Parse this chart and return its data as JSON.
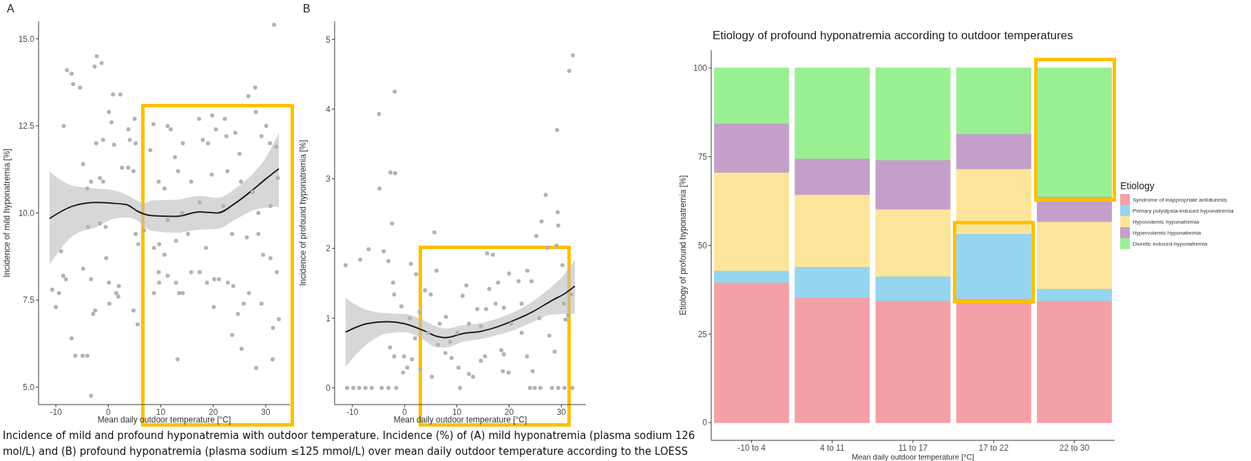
{
  "chart_data": [
    {
      "type": "scatter",
      "title": "A",
      "xlabel": "Mean daily outdoor temperature [°C]",
      "ylabel": "Incidence of mild hyponatremia [%]",
      "xlim": [
        -13.3,
        34.6
      ],
      "xticks": [
        -10,
        0,
        10,
        20,
        30
      ],
      "ylim": [
        4.5,
        15.5
      ],
      "yticks": [
        {
          "value": 5,
          "label": "5.0"
        },
        {
          "value": 7.5,
          "label": "7.5"
        },
        {
          "value": 10,
          "label": "10.0"
        },
        {
          "value": 12.5,
          "label": "12.5"
        },
        {
          "value": 15,
          "label": "15.0"
        }
      ],
      "annotations": [
        "Incidence of mild and profound hyponatremia with outdoor temperature. Incidence (%) of (A) mild hyponatremia (plasma sodium 126",
        "mol/L) and (B) profound hyponatremia (plasma sodium ≤125 mmol/L) over mean daily outdoor temperature according to the LOESS"
      ],
      "series": [
        {
          "type": "scatter",
          "marker": "circle",
          "color": "#b3b3b3",
          "x": [
            -7.9,
            -7.0,
            -6.7,
            -5.4,
            -2.6,
            -2.2,
            -1.3,
            0.9,
            2.3,
            0.1,
            -8.5,
            0.6,
            -2.3,
            -1.0,
            1.1,
            -4.8,
            3.8,
            4.1,
            5.0,
            5.2,
            2.6,
            3.8,
            4.8,
            -3.3,
            -1.6,
            -1.0,
            -4.0,
            -10.7,
            -10.0,
            -9.4,
            -9.0,
            -8.6,
            -8.1,
            -3.9,
            -4.8,
            -3.3,
            -1.6,
            -0.5,
            -0.4,
            0.1,
            1.5,
            2.0,
            1.9,
            0.2,
            -2.5,
            -2.9,
            -7.0,
            -6.3,
            -4.9,
            -4.0,
            -3.3,
            5.6,
            4.8,
            5.7,
            5.2,
            6.8,
            8.6,
            11.3,
            11.9,
            8.0,
            12.7,
            13.3,
            14.2,
            17.3,
            18.0,
            19.0,
            19.8,
            20.5,
            22.2,
            22.5,
            24.2,
            25.0,
            26.7,
            28.1,
            29.2,
            30.1,
            30.8,
            31.6,
            28.0,
            22.7,
            19.7,
            15.8,
            9.6,
            10.7,
            8.7,
            9.7,
            10.7,
            9.6,
            11.3,
            12.9,
            9.7,
            8.7,
            13.5,
            14.2,
            15.8,
            17.4,
            18.8,
            20.2,
            20.1,
            21.1,
            22.8,
            23.8,
            23.6,
            24.7,
            25.4,
            25.8,
            26.8,
            28.2,
            29.2,
            29.5,
            30.9,
            31.3,
            31.4,
            32.1,
            32.5,
            13.2,
            28.6,
            26.4,
            23.6,
            18.6,
            15.2,
            12.9,
            28.6,
            30.9,
            27.5,
            25.3,
            21.9,
            17.4,
            14.1,
            11.3,
            32.0,
            32.3
          ],
          "values": [
            14.1,
            14.0,
            13.7,
            13.6,
            14.2,
            14.5,
            14.3,
            13.4,
            13.4,
            12.9,
            12.5,
            12.6,
            12.0,
            12.1,
            11.96,
            11.4,
            12.4,
            12.1,
            12.7,
            12.0,
            11.3,
            11.3,
            11.2,
            10.9,
            11.0,
            10.9,
            10.7,
            7.8,
            7.3,
            7.7,
            8.9,
            8.2,
            8.1,
            9.6,
            8.4,
            8.1,
            9.7,
            9.6,
            8.7,
            8.0,
            7.7,
            7.9,
            7.6,
            7.4,
            7.2,
            7.1,
            6.4,
            5.9,
            5.9,
            5.9,
            4.75,
            6.8,
            7.2,
            9.1,
            9.4,
            9.5,
            12.55,
            12.5,
            12.4,
            11.8,
            11.6,
            11.2,
            12.0,
            12.7,
            12.1,
            12.0,
            12.8,
            12.4,
            12.7,
            12.2,
            12.3,
            11.7,
            13.35,
            12.9,
            12.2,
            12.5,
            12.0,
            15.4,
            13.6,
            11.2,
            11.1,
            10.9,
            10.9,
            10.7,
            9.0,
            9.1,
            8.8,
            8.3,
            8.2,
            8.0,
            8.0,
            7.7,
            7.7,
            7.7,
            8.3,
            8.3,
            8.0,
            8.1,
            7.3,
            8.1,
            8.0,
            7.9,
            6.5,
            7.1,
            6.1,
            7.4,
            7.7,
            5.55,
            7.4,
            8.8,
            8.7,
            5.8,
            6.7,
            8.3,
            6.95,
            5.8,
            9.4,
            9.3,
            9.4,
            9.0,
            9.4,
            9.2,
            10.0,
            10.2,
            10.6,
            10.9,
            10.2,
            10.3,
            10.0,
            9.8,
            11.9,
            11.0
          ]
        },
        {
          "type": "line",
          "color": "#1a1a1a",
          "x": [
            -11.2,
            -6.7,
            -2.2,
            0.6,
            3.4,
            5.7,
            6.8,
            8.5,
            12.9,
            17.4,
            20.8,
            24.2,
            27.5,
            29.8,
            32.5
          ],
          "values": [
            9.84,
            10.2,
            10.3,
            10.28,
            10.24,
            10.04,
            9.97,
            9.92,
            9.9,
            10.03,
            10.0,
            10.28,
            10.66,
            10.95,
            11.27
          ],
          "upper": [
            11.19,
            10.78,
            10.7,
            10.66,
            10.53,
            10.34,
            10.28,
            10.36,
            10.38,
            10.49,
            10.43,
            10.7,
            11.12,
            11.54,
            12.3
          ],
          "lower": [
            8.51,
            9.35,
            9.6,
            9.81,
            9.87,
            9.77,
            9.6,
            9.48,
            9.43,
            9.52,
            9.54,
            9.81,
            10.07,
            10.15,
            10.18
          ]
        }
      ]
    },
    {
      "type": "scatter",
      "title": "B",
      "xlabel": "Mean daily outdoor temperature [°C]",
      "ylabel": "Incidence of profound hyponatremia [%]",
      "xlim": [
        -13.4,
        34.7
      ],
      "xticks": [
        -10,
        0,
        10,
        20,
        30
      ],
      "ylim": [
        -0.24,
        5.26
      ],
      "yticks": [
        0,
        1,
        2,
        3,
        4,
        5
      ],
      "series": [
        {
          "type": "scatter",
          "marker": "circle",
          "color": "#b3b3b3",
          "x": [
            -11,
            -9.8,
            -8.7,
            -7.5,
            -6.3,
            -4.4,
            -3.1,
            -1.6,
            10.6,
            24.0,
            24.9,
            26.0,
            28.2,
            29.4,
            30.6,
            32.1,
            -4.9,
            -1.9,
            -2.7,
            -1.8,
            -4.8,
            -2.4,
            5.7,
            -11.3,
            -6.9,
            -8.5,
            -4.0,
            -3.1,
            -2.2,
            1.2,
            2.2,
            3.9,
            5.0,
            6.1,
            -2.0,
            -0.6,
            -0.3,
            0.5,
            -0.1,
            1.4,
            3.0,
            5.2,
            -2.8,
            -2.0,
            2.0,
            4.5,
            1.0,
            2.9,
            6.4,
            7.9,
            9.0,
            10.3,
            11.1,
            11.8,
            12.3,
            13.1,
            13.9,
            14.6,
            15.4,
            15.8,
            16.9,
            16.2,
            17.9,
            18.5,
            19.0,
            18.8,
            19.9,
            20.0,
            21.8,
            23.5,
            24.3,
            25.2,
            26.2,
            27.0,
            27.3,
            29.2,
            29.3,
            29.4,
            31.5,
            32.2,
            29.1,
            30.2,
            28.7,
            27.7,
            24.5,
            23.4,
            22.4,
            20.4,
            19.0,
            17.4,
            14.6,
            12.3,
            10.1,
            8.7,
            15.6,
            22.4,
            25.8,
            30.8,
            31.3,
            31.9,
            30.5,
            7.8,
            6.7
          ],
          "values": [
            0,
            0,
            0,
            0,
            0,
            0,
            0,
            0,
            0,
            0,
            0,
            0,
            0,
            0,
            0,
            0,
            3.93,
            4.25,
            3.09,
            3.08,
            2.86,
            2.36,
            2.23,
            1.76,
            1.99,
            1.84,
            1.96,
            1.82,
            1.51,
            1.78,
            1.63,
            1.4,
            1.34,
            1.68,
            1.34,
            1.17,
            0.22,
            0.29,
            0.45,
            0.41,
            0.27,
            0.16,
            0.58,
            0.45,
            0.71,
            0.79,
            1.0,
            1.09,
            0.62,
            1.02,
            0.43,
            0.29,
            1.32,
            1.47,
            0.2,
            0.16,
            1.13,
            0.39,
            0.45,
            1.93,
            1.91,
            1.42,
            1.51,
            0.54,
            0.48,
            0.24,
            0.22,
            1.64,
            1.53,
            1.68,
            1.53,
            2.18,
            2.39,
            2.77,
            2.01,
            3.7,
            2.52,
            2.33,
            4.55,
            4.77,
            2.04,
            1.76,
            0.52,
            0.75,
            0.24,
            0.45,
            0.79,
            0.92,
            1.15,
            1.21,
            0.88,
            0.92,
            0.79,
            0.66,
            1.13,
            1.21,
            1.0,
            0.98,
            1.04,
            1.34,
            1.21,
            0.5,
            0.92
          ]
        },
        {
          "type": "line",
          "color": "#1a1a1a",
          "x": [
            -11.3,
            -7.3,
            -3.4,
            0,
            3.4,
            6.1,
            7.8,
            11.2,
            14.5,
            17.9,
            21.3,
            24.7,
            28.1,
            30.8,
            32.6
          ],
          "values": [
            0.8,
            0.92,
            0.95,
            0.92,
            0.83,
            0.74,
            0.72,
            0.78,
            0.81,
            0.88,
            0.98,
            1.1,
            1.25,
            1.36,
            1.46
          ],
          "upper": [
            1.29,
            1.12,
            1.07,
            1.06,
            0.98,
            0.88,
            0.85,
            0.9,
            0.93,
            1.0,
            1.1,
            1.25,
            1.45,
            1.65,
            1.84
          ],
          "lower": [
            0.3,
            0.62,
            0.78,
            0.8,
            0.7,
            0.58,
            0.58,
            0.66,
            0.7,
            0.76,
            0.84,
            0.95,
            1.05,
            1.06,
            1.06
          ]
        }
      ]
    },
    {
      "type": "bar",
      "stacked": true,
      "title": "Etiology of profound hyponatremia according to outdoor temperatures",
      "xlabel": "Mean daily outdoor temperature [°C]",
      "ylabel": "Etiology of profound hyponatremia [%]",
      "legend_title": "Etiology",
      "legend": "right",
      "categories": [
        "-10 to 4",
        "4 to 11",
        "11 to 17",
        "17 to 22",
        "22 to 30"
      ],
      "ylim": [
        -5,
        105
      ],
      "yticks": [
        0,
        25,
        50,
        75,
        100
      ],
      "series": [
        {
          "name": "Syndrome of inappropriate antidiuresis",
          "color": "#f3a1a6",
          "values": [
            39.5,
            35.4,
            34.4,
            35.0,
            34.4
          ]
        },
        {
          "name": "Primary polydipsia-induced hyponatremia",
          "color": "#95d5f0",
          "values": [
            3.4,
            8.6,
            6.9,
            18.3,
            3.4
          ]
        },
        {
          "name": "Hypovolemic hyponatremia",
          "color": "#fce59a",
          "values": [
            27.7,
            20.3,
            18.9,
            18.3,
            18.9
          ]
        },
        {
          "name": "Hypervolemic hyponatremia",
          "color": "#c39fca",
          "values": [
            13.8,
            10.2,
            13.9,
            9.9,
            7.0
          ]
        },
        {
          "name": "Diuretic induced-hyponatremia",
          "color": "#9bef93",
          "values": [
            15.6,
            25.5,
            25.9,
            18.5,
            36.3
          ]
        }
      ]
    }
  ]
}
